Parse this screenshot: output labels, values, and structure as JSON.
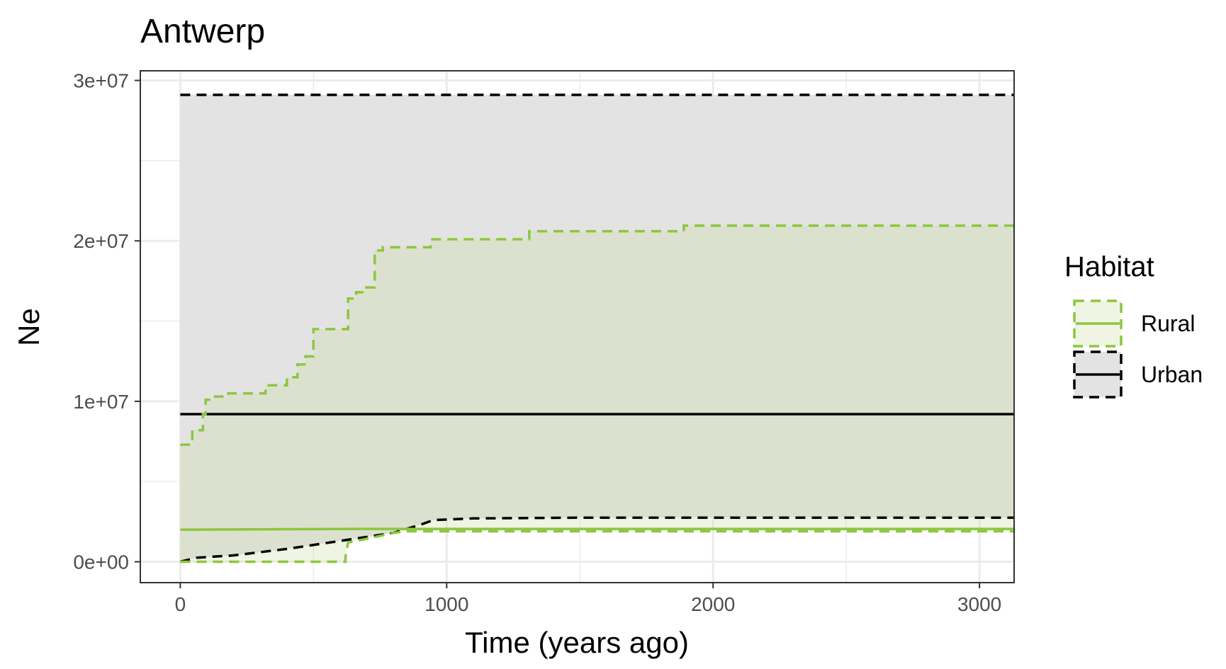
{
  "chart_data": {
    "type": "area",
    "title": "Antwerp",
    "xlabel": "Time (years ago)",
    "ylabel": "Ne",
    "xlim": [
      -150,
      3130
    ],
    "ylim": [
      -1300000,
      30600000
    ],
    "x_ticks": [
      0,
      1000,
      2000,
      3000
    ],
    "x_tick_labels": [
      "0",
      "1000",
      "2000",
      "3000"
    ],
    "y_ticks": [
      0,
      10000000,
      20000000,
      30000000
    ],
    "y_tick_labels": [
      "0e+00",
      "1e+07",
      "2e+07",
      "3e+07"
    ],
    "grid": true,
    "legend": {
      "title": "Habitat",
      "position": "right"
    },
    "series": [
      {
        "name": "Urban",
        "color": "#000000",
        "fill": "#e3e3e3",
        "median": [
          [
            0,
            9200000
          ],
          [
            3130,
            9200000
          ]
        ],
        "upper": [
          [
            0,
            29100000
          ],
          [
            3130,
            29100000
          ]
        ],
        "lower": [
          [
            0,
            0
          ],
          [
            60,
            250000
          ],
          [
            200,
            400000
          ],
          [
            400,
            800000
          ],
          [
            600,
            1300000
          ],
          [
            800,
            1800000
          ],
          [
            900,
            2300000
          ],
          [
            950,
            2600000
          ],
          [
            1100,
            2700000
          ],
          [
            1500,
            2750000
          ],
          [
            3130,
            2750000
          ]
        ]
      },
      {
        "name": "Rural",
        "color": "#8dc63f",
        "fill": "#c9de9f",
        "median": [
          [
            0,
            2000000
          ],
          [
            650,
            2050000
          ],
          [
            3130,
            2050000
          ]
        ],
        "upper": [
          [
            0,
            7300000
          ],
          [
            45,
            7300000
          ],
          [
            45,
            8200000
          ],
          [
            85,
            8200000
          ],
          [
            85,
            9200000
          ],
          [
            95,
            9200000
          ],
          [
            95,
            10100000
          ],
          [
            130,
            10100000
          ],
          [
            130,
            10300000
          ],
          [
            180,
            10300000
          ],
          [
            180,
            10500000
          ],
          [
            320,
            10500000
          ],
          [
            320,
            11000000
          ],
          [
            400,
            11000000
          ],
          [
            400,
            11500000
          ],
          [
            440,
            11500000
          ],
          [
            440,
            12300000
          ],
          [
            470,
            12300000
          ],
          [
            470,
            12800000
          ],
          [
            500,
            12800000
          ],
          [
            500,
            14500000
          ],
          [
            630,
            14500000
          ],
          [
            630,
            16400000
          ],
          [
            660,
            16400000
          ],
          [
            660,
            16800000
          ],
          [
            690,
            16800000
          ],
          [
            690,
            17100000
          ],
          [
            730,
            17100000
          ],
          [
            730,
            19400000
          ],
          [
            760,
            19400000
          ],
          [
            760,
            19600000
          ],
          [
            940,
            19600000
          ],
          [
            940,
            20100000
          ],
          [
            1310,
            20100000
          ],
          [
            1310,
            20600000
          ],
          [
            1890,
            20600000
          ],
          [
            1890,
            20950000
          ],
          [
            3130,
            20950000
          ]
        ],
        "lower": [
          [
            0,
            0
          ],
          [
            620,
            0
          ],
          [
            620,
            300000
          ],
          [
            630,
            1200000
          ],
          [
            720,
            1500000
          ],
          [
            800,
            1800000
          ],
          [
            850,
            1900000
          ],
          [
            3130,
            1900000
          ]
        ]
      }
    ]
  }
}
